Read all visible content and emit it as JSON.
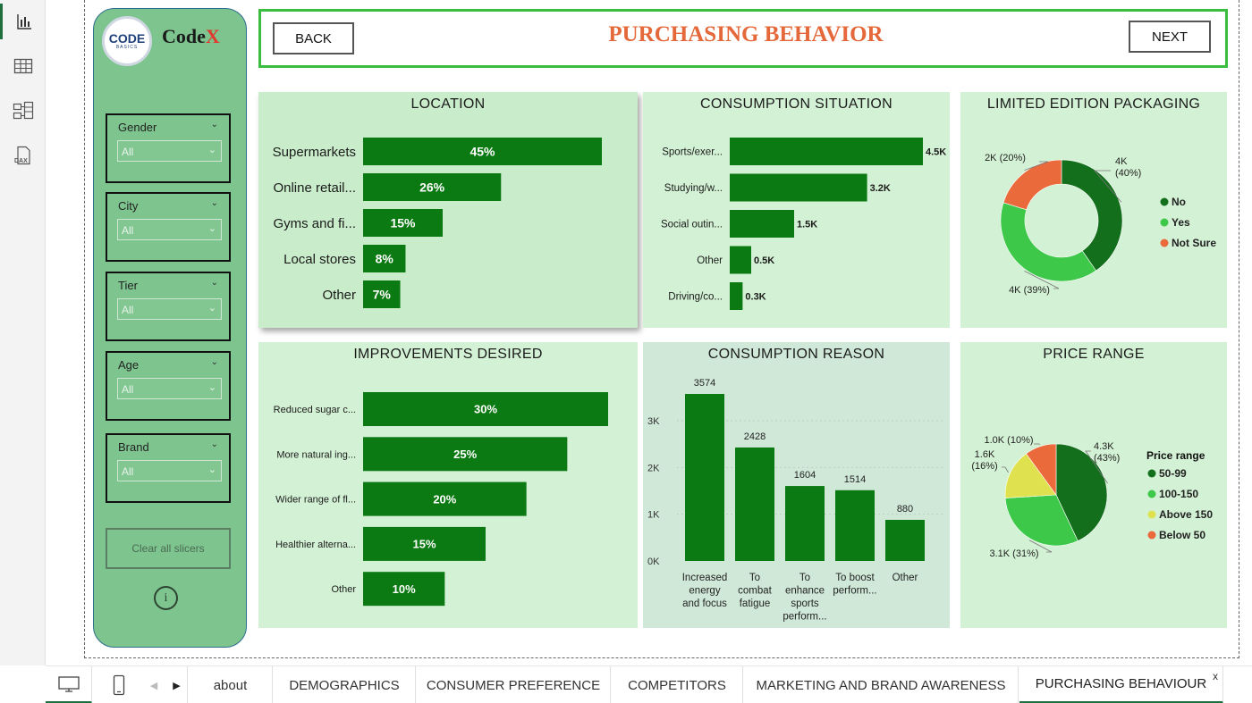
{
  "header": {
    "title": "PURCHASING BEHAVIOR",
    "back_label": "BACK",
    "next_label": "NEXT"
  },
  "brand": {
    "logo_main": "CODE",
    "logo_sub": "BASICS",
    "name_prefix": "Code",
    "name_suffix": "X",
    "name_suffix_color": "#e03a2e"
  },
  "slicers": [
    {
      "title": "Gender",
      "value": "All"
    },
    {
      "title": "City",
      "value": "All"
    },
    {
      "title": "Tier",
      "value": "All"
    },
    {
      "title": "Age",
      "value": "All"
    },
    {
      "title": "Brand",
      "value": "All"
    }
  ],
  "clear_label": "Clear all slicers",
  "info_glyph": "i",
  "colors": {
    "bar": "#0c7a12",
    "dark_green": "#146f1d",
    "light_green": "#3dc84a",
    "orange": "#ea6a3c",
    "yellow": "#dfe24e",
    "header_border": "#3bbd3f",
    "title": "#e4683a"
  },
  "tabs": {
    "items": [
      {
        "label": "about",
        "active": false
      },
      {
        "label": "DEMOGRAPHICS",
        "active": false
      },
      {
        "label": "CONSUMER PREFERENCE",
        "active": false
      },
      {
        "label": "COMPETITORS",
        "active": false
      },
      {
        "label": "MARKETING AND BRAND AWARENESS",
        "active": false
      },
      {
        "label": "PURCHASING BEHAVIOUR",
        "active": true
      }
    ],
    "close_glyph": "x"
  },
  "chart_data": [
    {
      "id": "location",
      "type": "bar",
      "orientation": "horizontal",
      "title": "LOCATION",
      "categories": [
        "Supermarkets",
        "Online retail...",
        "Gyms and fi...",
        "Local stores",
        "Other"
      ],
      "values": [
        45,
        26,
        15,
        8,
        7
      ],
      "labels": [
        "45%",
        "26%",
        "15%",
        "8%",
        "7%"
      ],
      "xmax": 45
    },
    {
      "id": "consumption_situation",
      "type": "bar",
      "orientation": "horizontal",
      "title": "CONSUMPTION SITUATION",
      "categories": [
        "Sports/exer...",
        "Studying/w...",
        "Social outin...",
        "Other",
        "Driving/co..."
      ],
      "values": [
        4500,
        3200,
        1500,
        500,
        300
      ],
      "labels": [
        "4.5K",
        "3.2K",
        "1.5K",
        "0.5K",
        "0.3K"
      ],
      "xmax": 4500
    },
    {
      "id": "limited_edition",
      "type": "pie",
      "variant": "donut",
      "title": "LIMITED EDITION PACKAGING",
      "slices": [
        {
          "name": "No",
          "value": 40,
          "label": "4K\n(40%)",
          "color": "#146f1d"
        },
        {
          "name": "Yes",
          "value": 39,
          "label": "4K (39%)",
          "color": "#3dc84a"
        },
        {
          "name": "Not Sure",
          "value": 20,
          "label": "2K (20%)",
          "color": "#ea6a3c"
        }
      ],
      "legend": [
        "No",
        "Yes",
        "Not Sure"
      ]
    },
    {
      "id": "improvements",
      "type": "bar",
      "orientation": "horizontal",
      "title": "IMPROVEMENTS DESIRED",
      "categories": [
        "Reduced sugar c...",
        "More natural ing...",
        "Wider range of fl...",
        "Healthier alterna...",
        "Other"
      ],
      "values": [
        30,
        25,
        20,
        15,
        10
      ],
      "labels": [
        "30%",
        "25%",
        "20%",
        "15%",
        "10%"
      ],
      "xmax": 30
    },
    {
      "id": "consumption_reason",
      "type": "bar",
      "orientation": "vertical",
      "title": "CONSUMPTION REASON",
      "categories": [
        [
          "Increased",
          "energy",
          "and focus"
        ],
        [
          "To",
          "combat",
          "fatigue"
        ],
        [
          "To",
          "enhance",
          "sports",
          "perform..."
        ],
        [
          "To boost",
          "perform..."
        ],
        [
          "Other"
        ]
      ],
      "values": [
        3574,
        2428,
        1604,
        1514,
        880
      ],
      "labels": [
        "3574",
        "2428",
        "1604",
        "1514",
        "880"
      ],
      "yticks": [
        "0K",
        "1K",
        "2K",
        "3K"
      ],
      "ylim": [
        0,
        3574
      ]
    },
    {
      "id": "price_range",
      "type": "pie",
      "title": "PRICE RANGE",
      "legend_title": "Price range",
      "slices": [
        {
          "name": "50-99",
          "value": 43,
          "label": "4.3K\n(43%)",
          "color": "#146f1d"
        },
        {
          "name": "100-150",
          "value": 31,
          "label": "3.1K (31%)",
          "color": "#3dc84a"
        },
        {
          "name": "Above 150",
          "value": 16,
          "label": "1.6K\n(16%)",
          "color": "#dfe24e"
        },
        {
          "name": "Below 50",
          "value": 10,
          "label": "1.0K (10%)",
          "color": "#ea6a3c"
        }
      ],
      "legend": [
        "50-99",
        "100-150",
        "Above 150",
        "Below 50"
      ]
    }
  ]
}
